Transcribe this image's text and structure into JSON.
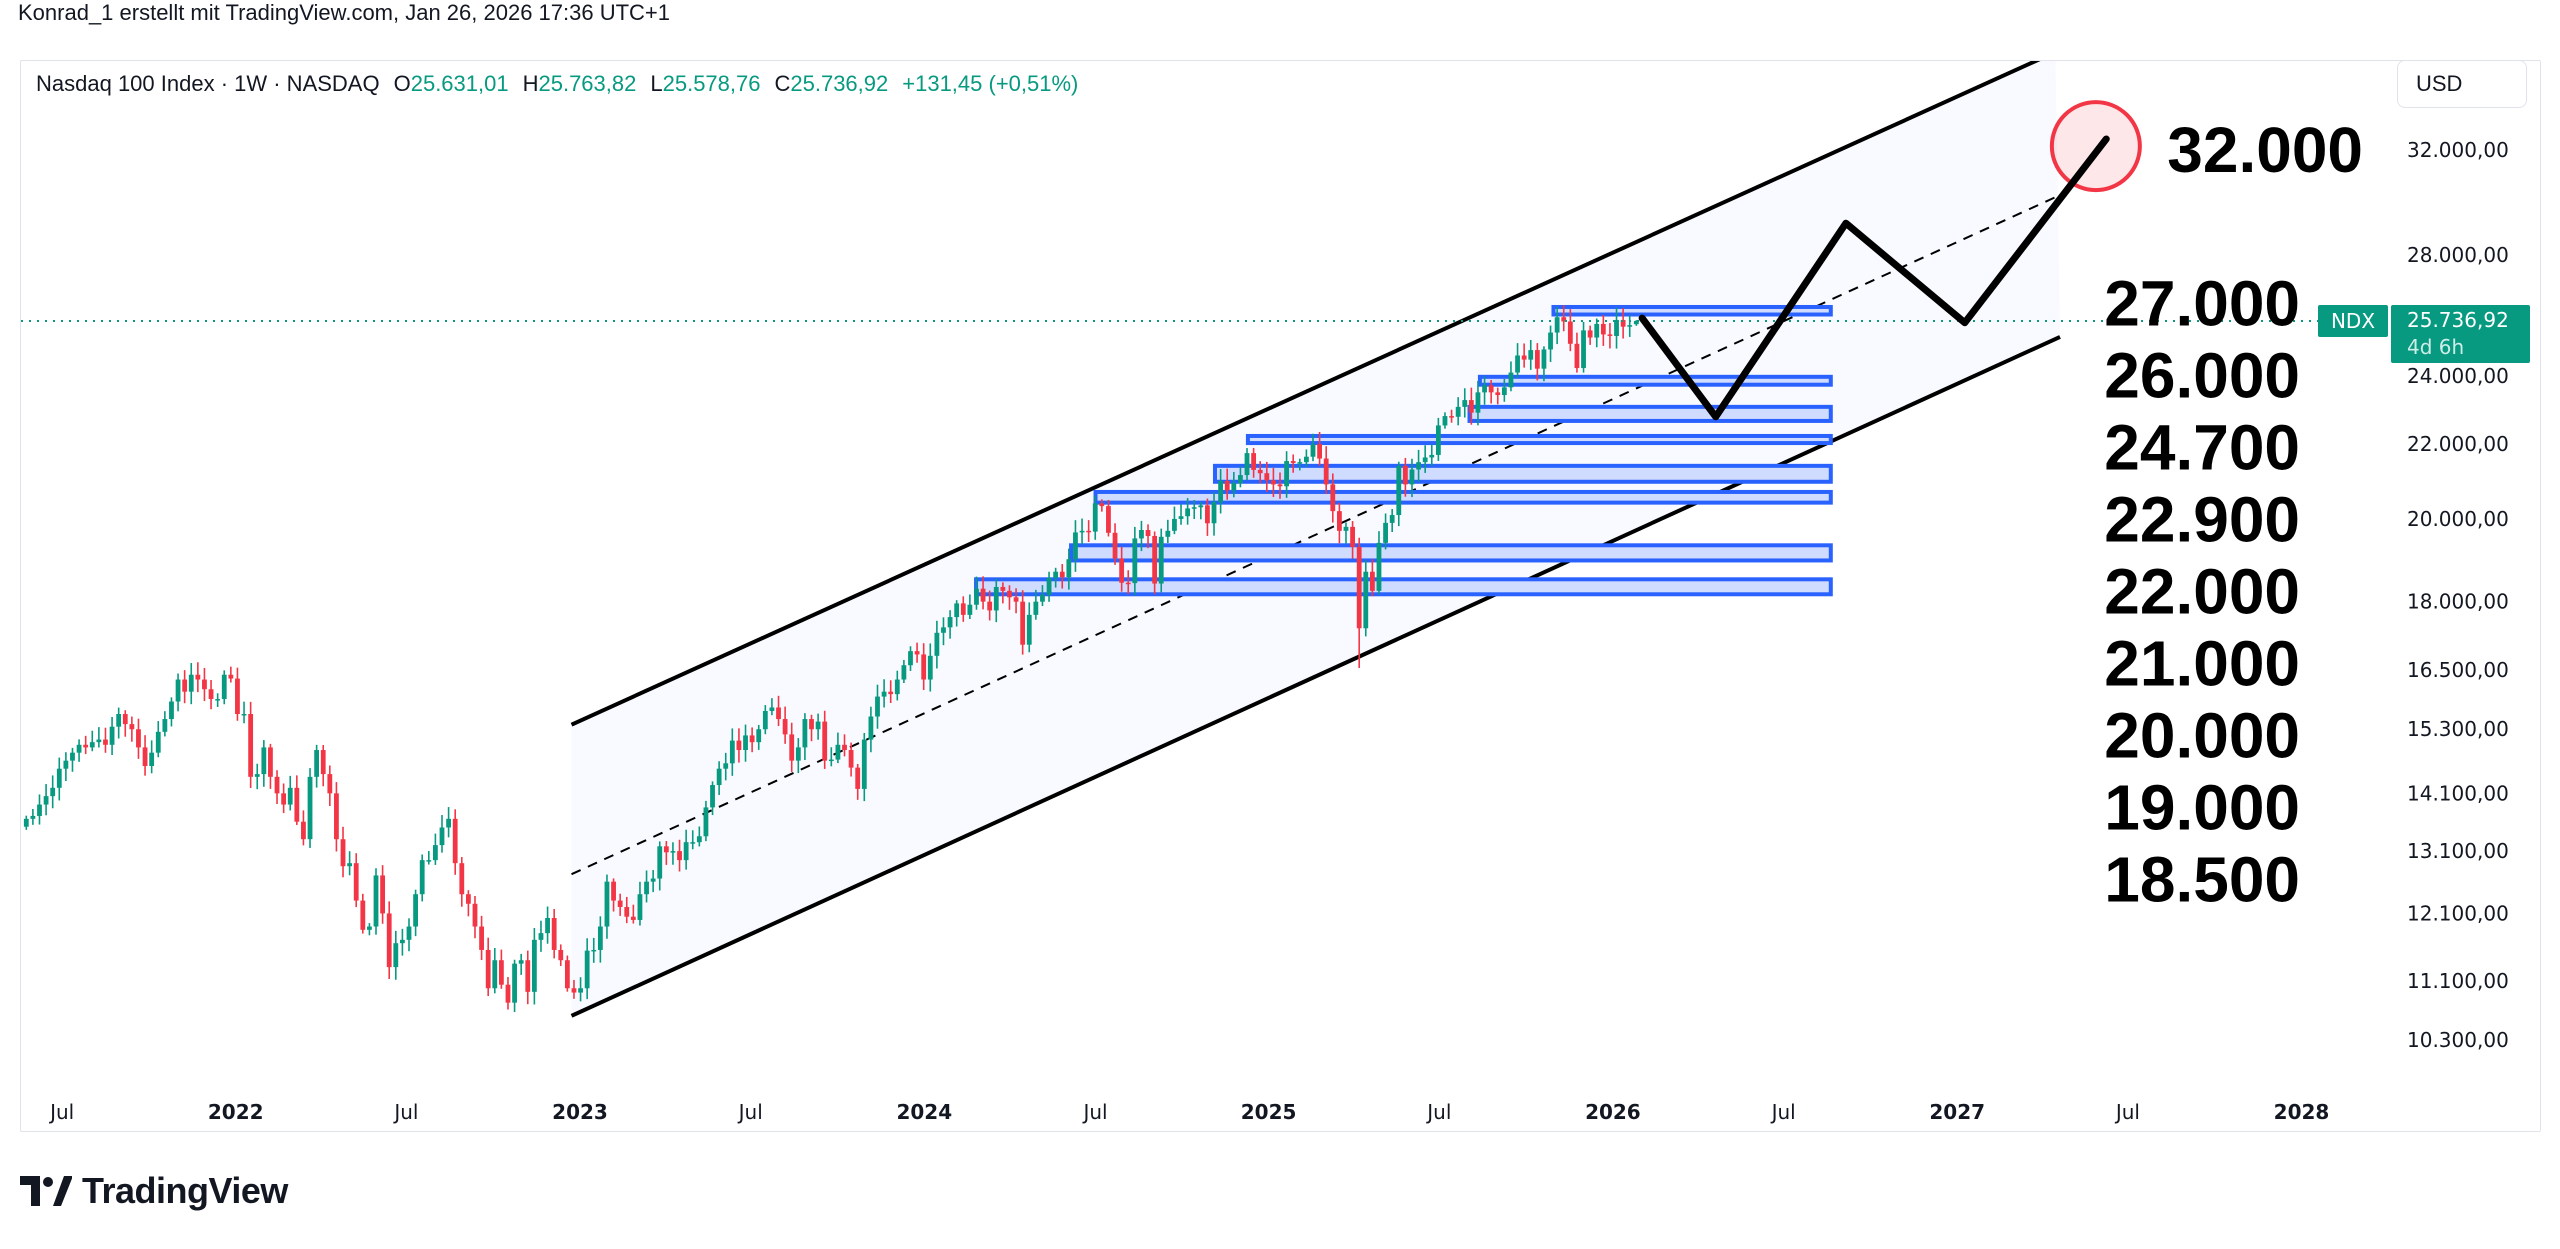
{
  "caption": "Konrad_1 erstellt mit TradingView.com, Jan 26, 2026 17:36 UTC+1",
  "legend": {
    "symbol": "Nasdaq 100 Index · 1W · NASDAQ",
    "open_label": "O",
    "open": "25.631,01",
    "high_label": "H",
    "high": "25.763,82",
    "low_label": "L",
    "low": "25.578,76",
    "close_label": "C",
    "close": "25.736,92",
    "change": "+131,45 (+0,51%)"
  },
  "currency_button": "USD",
  "branding": "TradingView",
  "colors": {
    "up": "#089981",
    "down": "#F23645",
    "zone_stroke": "#2962FF",
    "zone_fill": "#CFDBFF",
    "channel_fill": "#F8FAFF",
    "target_circle": "#F23645",
    "drawing": "#000000"
  },
  "chart_data": {
    "type": "candlestick",
    "scale": "log",
    "grid": false,
    "interval": "1W",
    "first_week": "2021-05-24",
    "weekly_closes": [
      13650,
      13700,
      13900,
      14050,
      14200,
      14550,
      14700,
      14850,
      15000,
      14950,
      15050,
      15100,
      15000,
      15350,
      15600,
      15400,
      15300,
      14950,
      14600,
      14850,
      15250,
      15500,
      15850,
      16300,
      16050,
      16400,
      16300,
      16100,
      15900,
      15900,
      16400,
      16320,
      15600,
      15600,
      14400,
      14450,
      14950,
      14400,
      14100,
      13900,
      14200,
      13600,
      13300,
      14400,
      14900,
      14450,
      14100,
      13300,
      12850,
      12900,
      12300,
      11850,
      11900,
      12700,
      12100,
      11300,
      11650,
      11700,
      11900,
      12400,
      12950,
      12950,
      13200,
      13500,
      13650,
      12900,
      12400,
      12250,
      11900,
      11550,
      11000,
      11400,
      11050,
      10800,
      11350,
      11400,
      10950,
      11700,
      11800,
      12030,
      11550,
      11400,
      11000,
      10940,
      11000,
      11540,
      11550,
      11900,
      12600,
      12300,
      12200,
      12050,
      12000,
      12400,
      12600,
      12650,
      13180,
      13080,
      13100,
      12950,
      13250,
      13250,
      13350,
      13850,
      14250,
      14550,
      14650,
      15080,
      14900,
      15180,
      15050,
      15300,
      15660,
      15730,
      15500,
      15200,
      14700,
      14950,
      15500,
      15300,
      15450,
      14700,
      14720,
      15000,
      14900,
      14570,
      14180,
      15100,
      15550,
      15950,
      16050,
      16000,
      16300,
      16600,
      16900,
      16830,
      16300,
      16800,
      17300,
      17420,
      17650,
      17960,
      17700,
      17930,
      18300,
      18000,
      17800,
      18340,
      18250,
      18100,
      18000,
      17040,
      17700,
      18000,
      18160,
      18550,
      18700,
      18570,
      19000,
      19660,
      19700,
      19680,
      20400,
      20330,
      19650,
      19020,
      18440,
      18430,
      19510,
      19720,
      19570,
      18420,
      19550,
      19700,
      20000,
      20070,
      20270,
      20300,
      20350,
      19890,
      20430,
      20990,
      20740,
      20930,
      21150,
      21750,
      21290,
      21200,
      21010,
      20900,
      20850,
      21530,
      21480,
      21500,
      21650,
      22000,
      21600,
      20900,
      20200,
      19700,
      19800,
      19300,
      17400,
      18700,
      18250,
      19400,
      19900,
      20100,
      21400,
      20900,
      21300,
      21500,
      21630,
      21700,
      22530,
      22800,
      22780,
      23070,
      23270,
      22900,
      23500,
      23710,
      23500,
      23420,
      23650,
      24100,
      24630,
      24500,
      24800,
      24220,
      24820,
      25360,
      25860,
      25720,
      25000,
      24240,
      25430,
      25200,
      25640,
      25300,
      25250,
      25770,
      25550,
      25600,
      25736.92
    ],
    "last_candle": {
      "open": 25631.01,
      "high": 25763.82,
      "low": 25578.76,
      "close": 25736.92
    },
    "notable_lows": [
      {
        "week": "2025-04-07",
        "low": 16542
      }
    ],
    "y_ticks": [
      "32.000,00",
      "28.000,00",
      "24.000,00",
      "22.000,00",
      "20.000,00",
      "18.000,00",
      "16.500,00",
      "15.300,00",
      "14.100,00",
      "13.100,00",
      "12.100,00",
      "11.100,00",
      "10.300,00"
    ],
    "x_ticks": [
      {
        "label": "Jul",
        "date": "2021-07-01",
        "bold": false
      },
      {
        "label": "2022",
        "date": "2022-01-01",
        "bold": true
      },
      {
        "label": "Jul",
        "date": "2022-07-01",
        "bold": false
      },
      {
        "label": "2023",
        "date": "2023-01-01",
        "bold": true
      },
      {
        "label": "Jul",
        "date": "2023-07-01",
        "bold": false
      },
      {
        "label": "2024",
        "date": "2024-01-01",
        "bold": true
      },
      {
        "label": "Jul",
        "date": "2024-07-01",
        "bold": false
      },
      {
        "label": "2025",
        "date": "2025-01-01",
        "bold": true
      },
      {
        "label": "Jul",
        "date": "2025-07-01",
        "bold": false
      },
      {
        "label": "2026",
        "date": "2026-01-01",
        "bold": true
      },
      {
        "label": "Jul",
        "date": "2026-07-01",
        "bold": false
      },
      {
        "label": "2027",
        "date": "2027-01-01",
        "bold": true
      },
      {
        "label": "Jul",
        "date": "2027-07-01",
        "bold": false
      },
      {
        "label": "2028",
        "date": "2028-01-01",
        "bold": true
      }
    ],
    "current_price": {
      "symbol": "NDX",
      "value": "25.736,92",
      "countdown": "4d 6h",
      "price": 25736.92
    },
    "channel": {
      "upper": [
        {
          "date": "2022-12-23",
          "price": 15390
        },
        {
          "date": "2027-04-15",
          "price": 36250
        }
      ],
      "middle": [
        {
          "date": "2022-12-23",
          "price": 12720
        },
        {
          "date": "2027-04-15",
          "price": 30130
        }
      ],
      "lower": [
        {
          "date": "2022-12-23",
          "price": 10620
        },
        {
          "date": "2027-04-20",
          "price": 25220
        }
      ]
    },
    "zones": [
      {
        "from": "2025-10-30",
        "to": "2026-08-20",
        "top": 26200,
        "bottom": 25950
      },
      {
        "from": "2025-08-13",
        "to": "2026-08-20",
        "top": 23970,
        "bottom": 23730
      },
      {
        "from": "2025-08-02",
        "to": "2026-08-20",
        "top": 23070,
        "bottom": 22660
      },
      {
        "from": "2024-12-10",
        "to": "2026-08-20",
        "top": 22230,
        "bottom": 22030
      },
      {
        "from": "2024-11-05",
        "to": "2026-08-20",
        "top": 21400,
        "bottom": 20970
      },
      {
        "from": "2024-07-01",
        "to": "2026-08-20",
        "top": 20700,
        "bottom": 20420
      },
      {
        "from": "2024-06-05",
        "to": "2026-08-20",
        "top": 19340,
        "bottom": 18970
      },
      {
        "from": "2024-02-25",
        "to": "2026-08-20",
        "top": 18520,
        "bottom": 18170
      }
    ],
    "projection_path": [
      {
        "date": "2026-02-01",
        "price": 25830
      },
      {
        "date": "2026-04-20",
        "price": 22780
      },
      {
        "date": "2026-09-05",
        "price": 29150
      },
      {
        "date": "2027-01-09",
        "price": 25680
      },
      {
        "date": "2027-06-08",
        "price": 32450
      }
    ],
    "target_circle": {
      "date": "2027-05-28",
      "price": 32160
    },
    "level_labels": [
      "32.000",
      "27.000",
      "26.000",
      "24.700",
      "22.900",
      "22.000",
      "21.000",
      "20.000",
      "19.000",
      "18.500"
    ]
  }
}
